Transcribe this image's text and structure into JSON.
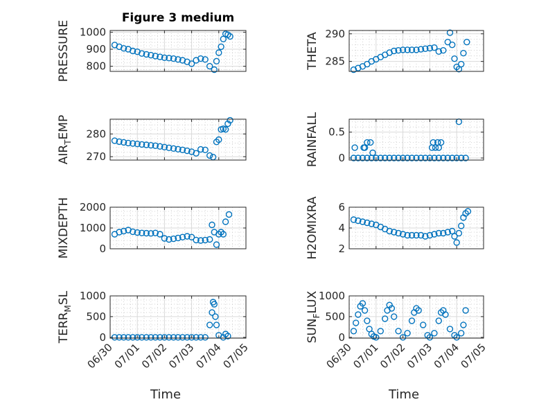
{
  "figure_title": "Figure 3 medium",
  "colors": {
    "marker": "#0072BD",
    "axis": "#262626",
    "grid": "#d9d9d9"
  },
  "chart_data": [
    {
      "id": "pressure",
      "type": "scatter",
      "title": "Figure 3 medium",
      "ylabel": "PRESSURE",
      "ylabel_main": "PRESSURE",
      "ylabel_sub": "",
      "ylabel_tail": "",
      "xlabel": "",
      "xlim": [
        "06/30",
        "07/05"
      ],
      "ylim": [
        770,
        1010
      ],
      "yticks": [
        800,
        900,
        1000
      ],
      "ytick_labels": [
        "800",
        "900",
        "1000"
      ],
      "xticks": [
        "06/30",
        "07/01",
        "07/02",
        "07/03",
        "07/04",
        "07/05"
      ],
      "show_xtick_labels": false,
      "grid": true,
      "minor_grid": true,
      "x": [
        "06/30 04:00",
        "06/30 08:00",
        "06/30 12:00",
        "06/30 16:00",
        "06/30 20:00",
        "07/01 00:00",
        "07/01 04:00",
        "07/01 08:00",
        "07/01 12:00",
        "07/01 16:00",
        "07/01 20:00",
        "07/02 00:00",
        "07/02 04:00",
        "07/02 08:00",
        "07/02 12:00",
        "07/02 16:00",
        "07/02 20:00",
        "07/03 00:00",
        "07/03 04:00",
        "07/03 08:00",
        "07/03 12:00",
        "07/03 16:00",
        "07/03 20:00",
        "07/03 22:00",
        "07/04 00:00",
        "07/04 02:00",
        "07/04 04:00",
        "07/04 06:00",
        "07/04 08:00",
        "07/04 10:00"
      ],
      "y": [
        925,
        915,
        905,
        900,
        890,
        885,
        875,
        870,
        865,
        860,
        855,
        850,
        848,
        845,
        840,
        835,
        826,
        815,
        835,
        845,
        840,
        800,
        780,
        830,
        880,
        915,
        960,
        990,
        985,
        975
      ]
    },
    {
      "id": "theta",
      "type": "scatter",
      "title": "",
      "ylabel": "THETA",
      "ylabel_main": "THETA",
      "ylabel_sub": "",
      "ylabel_tail": "",
      "xlabel": "",
      "xlim": [
        "06/30",
        "07/05"
      ],
      "ylim": [
        283.2,
        290.6
      ],
      "yticks": [
        285,
        290
      ],
      "ytick_labels": [
        "285",
        "290"
      ],
      "xticks": [
        "06/30",
        "07/01",
        "07/02",
        "07/03",
        "07/04",
        "07/05"
      ],
      "show_xtick_labels": false,
      "grid": true,
      "minor_grid": true,
      "x": [
        "06/30 04:00",
        "06/30 08:00",
        "06/30 12:00",
        "06/30 16:00",
        "06/30 20:00",
        "07/01 00:00",
        "07/01 04:00",
        "07/01 08:00",
        "07/01 12:00",
        "07/01 16:00",
        "07/01 20:00",
        "07/02 00:00",
        "07/02 04:00",
        "07/02 08:00",
        "07/02 12:00",
        "07/02 16:00",
        "07/02 20:00",
        "07/03 00:00",
        "07/03 04:00",
        "07/03 08:00",
        "07/03 12:00",
        "07/03 16:00",
        "07/03 18:00",
        "07/03 20:00",
        "07/03 22:00",
        "07/04 00:00",
        "07/04 02:00",
        "07/04 04:00",
        "07/04 06:00",
        "07/04 09:00"
      ],
      "y": [
        283.5,
        283.8,
        284.1,
        284.5,
        285.0,
        285.4,
        285.8,
        286.2,
        286.6,
        286.9,
        287.0,
        287.1,
        287.1,
        287.1,
        287.1,
        287.2,
        287.3,
        287.4,
        287.5,
        286.8,
        287.0,
        288.5,
        290.2,
        288.0,
        285.5,
        284.0,
        283.6,
        284.5,
        286.5,
        288.5
      ]
    },
    {
      "id": "air_temp",
      "type": "scatter",
      "title": "",
      "ylabel": "AIR_TEMP",
      "ylabel_main": "AIR",
      "ylabel_sub": "T",
      "ylabel_tail": "EMP",
      "xlabel": "",
      "xlim": [
        "06/30",
        "07/05"
      ],
      "ylim": [
        268.5,
        286.5
      ],
      "yticks": [
        270,
        280
      ],
      "ytick_labels": [
        "270",
        "280"
      ],
      "xticks": [
        "06/30",
        "07/01",
        "07/02",
        "07/03",
        "07/04",
        "07/05"
      ],
      "show_xtick_labels": false,
      "grid": true,
      "minor_grid": true,
      "x": [
        "06/30 04:00",
        "06/30 08:00",
        "06/30 12:00",
        "06/30 16:00",
        "06/30 20:00",
        "07/01 00:00",
        "07/01 04:00",
        "07/01 08:00",
        "07/01 12:00",
        "07/01 16:00",
        "07/01 20:00",
        "07/02 00:00",
        "07/02 04:00",
        "07/02 08:00",
        "07/02 12:00",
        "07/02 16:00",
        "07/02 20:00",
        "07/03 00:00",
        "07/03 04:00",
        "07/03 08:00",
        "07/03 12:00",
        "07/03 16:00",
        "07/03 19:00",
        "07/03 22:00",
        "07/04 00:00",
        "07/04 02:00",
        "07/04 04:00",
        "07/04 06:00",
        "07/04 08:00",
        "07/04 10:00"
      ],
      "y": [
        277.0,
        276.6,
        276.3,
        276.0,
        275.8,
        275.6,
        275.4,
        275.2,
        275.0,
        274.8,
        274.5,
        274.2,
        273.9,
        273.6,
        273.3,
        273.0,
        272.6,
        272.2,
        271.5,
        273.2,
        273.0,
        270.5,
        269.8,
        276.5,
        277.5,
        282.0,
        282.3,
        282.0,
        284.5,
        286.0
      ]
    },
    {
      "id": "rainfall",
      "type": "scatter",
      "title": "",
      "ylabel": "RAINFALL",
      "ylabel_main": "RAINFALL",
      "ylabel_sub": "",
      "ylabel_tail": "",
      "xlabel": "",
      "xlim": [
        "06/30",
        "07/05"
      ],
      "ylim": [
        -0.04,
        0.75
      ],
      "yticks": [
        0,
        0.5
      ],
      "ytick_labels": [
        "0",
        "0.5"
      ],
      "xticks": [
        "06/30",
        "07/01",
        "07/02",
        "07/03",
        "07/04",
        "07/05"
      ],
      "show_xtick_labels": false,
      "grid": true,
      "minor_grid": true,
      "x": [
        "06/30 04:00",
        "06/30 08:00",
        "06/30 12:00",
        "06/30 16:00",
        "06/30 20:00",
        "07/01 00:00",
        "07/01 04:00",
        "07/01 08:00",
        "07/01 12:00",
        "07/01 16:00",
        "07/01 20:00",
        "07/02 00:00",
        "07/02 04:00",
        "07/02 08:00",
        "07/02 12:00",
        "07/02 16:00",
        "07/02 20:00",
        "07/03 00:00",
        "07/03 04:00",
        "07/03 08:00",
        "07/03 12:00",
        "07/03 16:00",
        "07/03 20:00",
        "07/04 00:00",
        "07/04 04:00",
        "07/04 08:00",
        "06/30 05:00",
        "06/30 13:00",
        "06/30 14:00",
        "06/30 16:00",
        "06/30 19:00",
        "06/30 21:00",
        "07/03 02:00",
        "07/03 03:00",
        "07/03 05:00",
        "07/03 07:00",
        "07/03 08:00",
        "07/03 10:00",
        "07/04 02:00"
      ],
      "y": [
        0,
        0,
        0,
        0,
        0,
        0,
        0,
        0,
        0,
        0,
        0,
        0,
        0,
        0,
        0,
        0,
        0,
        0,
        0,
        0,
        0,
        0,
        0,
        0,
        0,
        0,
        0.2,
        0.2,
        0.2,
        0.3,
        0.3,
        0.1,
        0.2,
        0.3,
        0.2,
        0.3,
        0.2,
        0.3,
        0.7
      ]
    },
    {
      "id": "mixdepth",
      "type": "scatter",
      "title": "",
      "ylabel": "MIXDEPTH",
      "ylabel_main": "MIXDEPTH",
      "ylabel_sub": "",
      "ylabel_tail": "",
      "xlabel": "",
      "xlim": [
        "06/30",
        "07/05"
      ],
      "ylim": [
        0,
        2000
      ],
      "yticks": [
        0,
        1000,
        2000
      ],
      "ytick_labels": [
        "0",
        "1000",
        "2000"
      ],
      "xticks": [
        "06/30",
        "07/01",
        "07/02",
        "07/03",
        "07/04",
        "07/05"
      ],
      "show_xtick_labels": false,
      "grid": true,
      "minor_grid": true,
      "x": [
        "06/30 04:00",
        "06/30 08:00",
        "06/30 12:00",
        "06/30 16:00",
        "06/30 20:00",
        "07/01 00:00",
        "07/01 04:00",
        "07/01 08:00",
        "07/01 12:00",
        "07/01 16:00",
        "07/01 20:00",
        "07/02 00:00",
        "07/02 04:00",
        "07/02 08:00",
        "07/02 12:00",
        "07/02 16:00",
        "07/02 20:00",
        "07/03 00:00",
        "07/03 04:00",
        "07/03 08:00",
        "07/03 12:00",
        "07/03 16:00",
        "07/03 18:00",
        "07/03 20:00",
        "07/03 22:00",
        "07/04 00:00",
        "07/04 02:00",
        "07/04 04:00",
        "07/04 06:00",
        "07/04 09:00"
      ],
      "y": [
        700,
        800,
        850,
        900,
        820,
        780,
        760,
        750,
        740,
        760,
        700,
        500,
        450,
        480,
        520,
        560,
        600,
        560,
        420,
        400,
        420,
        450,
        1150,
        800,
        200,
        700,
        800,
        700,
        1300,
        1650
      ]
    },
    {
      "id": "h2omixra",
      "type": "scatter",
      "title": "",
      "ylabel": "H2OMIXRA",
      "ylabel_main": "H2OMIXRA",
      "ylabel_sub": "",
      "ylabel_tail": "",
      "xlabel": "",
      "xlim": [
        "06/30",
        "07/05"
      ],
      "ylim": [
        2,
        6
      ],
      "yticks": [
        2,
        4,
        6
      ],
      "ytick_labels": [
        "2",
        "4",
        "6"
      ],
      "xticks": [
        "06/30",
        "07/01",
        "07/02",
        "07/03",
        "07/04",
        "07/05"
      ],
      "show_xtick_labels": false,
      "grid": true,
      "minor_grid": true,
      "x": [
        "06/30 04:00",
        "06/30 08:00",
        "06/30 12:00",
        "06/30 16:00",
        "06/30 20:00",
        "07/01 00:00",
        "07/01 04:00",
        "07/01 08:00",
        "07/01 12:00",
        "07/01 16:00",
        "07/01 20:00",
        "07/02 00:00",
        "07/02 04:00",
        "07/02 08:00",
        "07/02 12:00",
        "07/02 16:00",
        "07/02 20:00",
        "07/03 00:00",
        "07/03 04:00",
        "07/03 08:00",
        "07/03 12:00",
        "07/03 16:00",
        "07/03 20:00",
        "07/03 22:00",
        "07/04 00:00",
        "07/04 02:00",
        "07/04 04:00",
        "07/04 06:00",
        "07/04 08:00",
        "07/04 10:00"
      ],
      "y": [
        4.8,
        4.7,
        4.6,
        4.5,
        4.4,
        4.3,
        4.1,
        3.9,
        3.7,
        3.6,
        3.5,
        3.4,
        3.3,
        3.3,
        3.3,
        3.3,
        3.2,
        3.3,
        3.4,
        3.5,
        3.5,
        3.6,
        3.7,
        3.2,
        2.6,
        3.5,
        4.2,
        5.0,
        5.4,
        5.6
      ]
    },
    {
      "id": "terr_msl",
      "type": "scatter",
      "title": "",
      "ylabel": "TERR_MSL",
      "ylabel_main": "TERR",
      "ylabel_sub": "M",
      "ylabel_tail": "SL",
      "xlabel": "Time",
      "xlim": [
        "06/30",
        "07/05"
      ],
      "ylim": [
        -20,
        1000
      ],
      "yticks": [
        0,
        500,
        1000
      ],
      "ytick_labels": [
        "0",
        "500",
        "1000"
      ],
      "xticks": [
        "06/30",
        "07/01",
        "07/02",
        "07/03",
        "07/04",
        "07/05"
      ],
      "show_xtick_labels": true,
      "grid": true,
      "minor_grid": true,
      "x": [
        "06/30 04:00",
        "06/30 08:00",
        "06/30 12:00",
        "06/30 16:00",
        "06/30 20:00",
        "07/01 00:00",
        "07/01 04:00",
        "07/01 08:00",
        "07/01 12:00",
        "07/01 16:00",
        "07/01 20:00",
        "07/02 00:00",
        "07/02 04:00",
        "07/02 08:00",
        "07/02 12:00",
        "07/02 16:00",
        "07/02 20:00",
        "07/03 00:00",
        "07/03 04:00",
        "07/03 08:00",
        "07/03 12:00",
        "07/03 16:00",
        "07/03 18:00",
        "07/03 19:00",
        "07/03 20:00",
        "07/03 21:00",
        "07/03 22:00",
        "07/04 00:00",
        "07/04 04:00",
        "07/04 06:00",
        "07/04 08:00"
      ],
      "y": [
        0,
        0,
        0,
        0,
        0,
        0,
        0,
        0,
        0,
        0,
        0,
        0,
        0,
        0,
        0,
        0,
        0,
        0,
        0,
        0,
        0,
        300,
        600,
        850,
        800,
        500,
        300,
        50,
        0,
        80,
        30
      ]
    },
    {
      "id": "sun_flux",
      "type": "scatter",
      "title": "",
      "ylabel": "SUN_FLUX",
      "ylabel_main": "SUN",
      "ylabel_sub": "F",
      "ylabel_tail": "LUX",
      "xlabel": "Time",
      "xlim": [
        "06/30",
        "07/05"
      ],
      "ylim": [
        -20,
        1000
      ],
      "yticks": [
        0,
        500,
        1000
      ],
      "ytick_labels": [
        "0",
        "500",
        "1000"
      ],
      "xticks": [
        "06/30",
        "07/01",
        "07/02",
        "07/03",
        "07/04",
        "07/05"
      ],
      "show_xtick_labels": true,
      "grid": true,
      "minor_grid": true,
      "x": [
        "06/30 04:00",
        "06/30 06:00",
        "06/30 08:00",
        "06/30 10:00",
        "06/30 12:00",
        "06/30 14:00",
        "06/30 16:00",
        "06/30 18:00",
        "06/30 20:00",
        "06/30 22:00",
        "07/01 00:00",
        "07/01 04:00",
        "07/01 08:00",
        "07/01 10:00",
        "07/01 12:00",
        "07/01 14:00",
        "07/01 16:00",
        "07/01 20:00",
        "07/02 00:00",
        "07/02 04:00",
        "07/02 08:00",
        "07/02 10:00",
        "07/02 12:00",
        "07/02 14:00",
        "07/02 18:00",
        "07/02 22:00",
        "07/03 00:00",
        "07/03 04:00",
        "07/03 08:00",
        "07/03 10:00",
        "07/03 12:00",
        "07/03 14:00",
        "07/03 18:00",
        "07/03 22:00",
        "07/04 00:00",
        "07/04 04:00",
        "07/04 06:00",
        "07/04 08:00"
      ],
      "y": [
        150,
        350,
        550,
        750,
        820,
        650,
        400,
        200,
        80,
        20,
        0,
        150,
        450,
        650,
        780,
        700,
        500,
        150,
        0,
        100,
        400,
        600,
        700,
        650,
        300,
        50,
        0,
        100,
        400,
        600,
        650,
        550,
        200,
        50,
        0,
        100,
        300,
        650
      ]
    }
  ]
}
